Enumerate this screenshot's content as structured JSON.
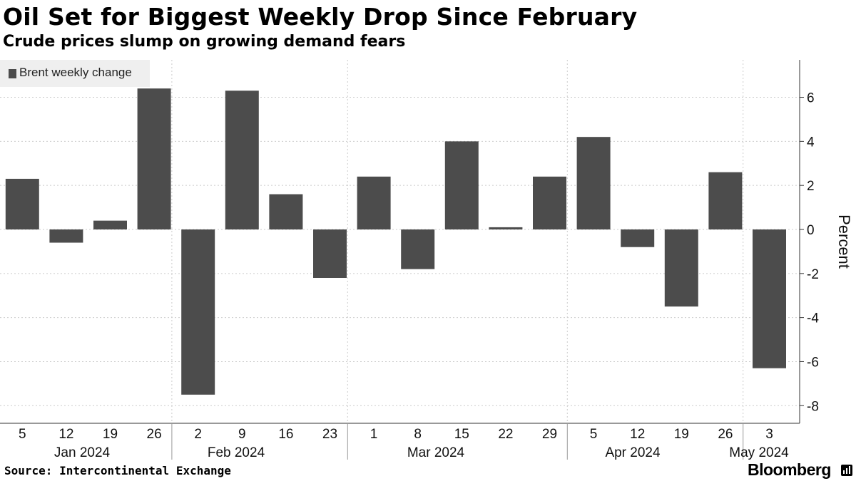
{
  "header": {
    "title": "Oil Set for Biggest Weekly Drop Since February",
    "subtitle": "Crude prices slump on growing demand fears"
  },
  "footer": {
    "source": "Source: Intercontinental Exchange",
    "brand": "Bloomberg"
  },
  "colors": {
    "bar": "#4c4c4c",
    "grid": "#cccccc",
    "axis": "#333333"
  },
  "chart_data": {
    "type": "bar",
    "title": "Oil Set for Biggest Weekly Drop Since February",
    "subtitle": "Crude prices slump on growing demand fears",
    "legend": [
      "Brent weekly change"
    ],
    "legend_position": "top-left",
    "ylabel": "Percent",
    "xlabel": "",
    "ylim": [
      -8.8,
      7.7
    ],
    "yticks": [
      -8,
      -6,
      -4,
      -2,
      0,
      2,
      4,
      6
    ],
    "grid": true,
    "categories": [
      "5",
      "12",
      "19",
      "26",
      "2",
      "9",
      "16",
      "23",
      "1",
      "8",
      "15",
      "22",
      "29",
      "5",
      "12",
      "19",
      "26",
      "3"
    ],
    "months": [
      {
        "label": "Jan 2024",
        "start": 0,
        "end": 3
      },
      {
        "label": "Feb 2024",
        "start": 4,
        "end": 7
      },
      {
        "label": "Mar 2024",
        "start": 8,
        "end": 12
      },
      {
        "label": "Apr 2024",
        "start": 13,
        "end": 16
      },
      {
        "label": "May 2024",
        "start": 17,
        "end": 17
      }
    ],
    "series": [
      {
        "name": "Brent weekly change",
        "values": [
          2.3,
          -0.6,
          0.4,
          6.4,
          -7.5,
          6.3,
          1.6,
          -2.2,
          2.4,
          -1.8,
          4.0,
          0.1,
          2.4,
          4.2,
          -0.8,
          -3.5,
          2.6,
          -6.3
        ]
      }
    ]
  }
}
